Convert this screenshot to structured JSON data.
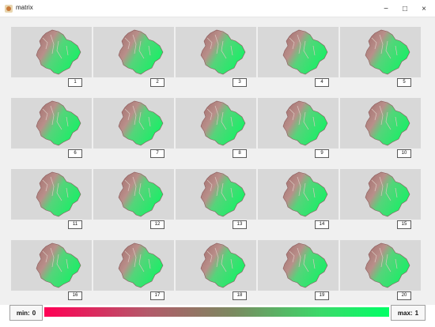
{
  "window": {
    "title": "matrix",
    "icon": "app-icon",
    "controls": {
      "minimize": "−",
      "maximize": "□",
      "close": "×"
    }
  },
  "grid": {
    "rows": 4,
    "cols": 5,
    "cells": [
      {
        "label": "1"
      },
      {
        "label": "2"
      },
      {
        "label": "3"
      },
      {
        "label": "4"
      },
      {
        "label": "5"
      },
      {
        "label": "6"
      },
      {
        "label": "7"
      },
      {
        "label": "8"
      },
      {
        "label": "9"
      },
      {
        "label": "10"
      },
      {
        "label": "11"
      },
      {
        "label": "12"
      },
      {
        "label": "13"
      },
      {
        "label": "14"
      },
      {
        "label": "15"
      },
      {
        "label": "16"
      },
      {
        "label": "17"
      },
      {
        "label": "18"
      },
      {
        "label": "19"
      },
      {
        "label": "20"
      }
    ]
  },
  "colorbar": {
    "min_label": "min:",
    "min_value": "0",
    "max_label": "max:",
    "max_value": "1",
    "color_min": "#ff0055",
    "color_max": "#00ff66"
  }
}
